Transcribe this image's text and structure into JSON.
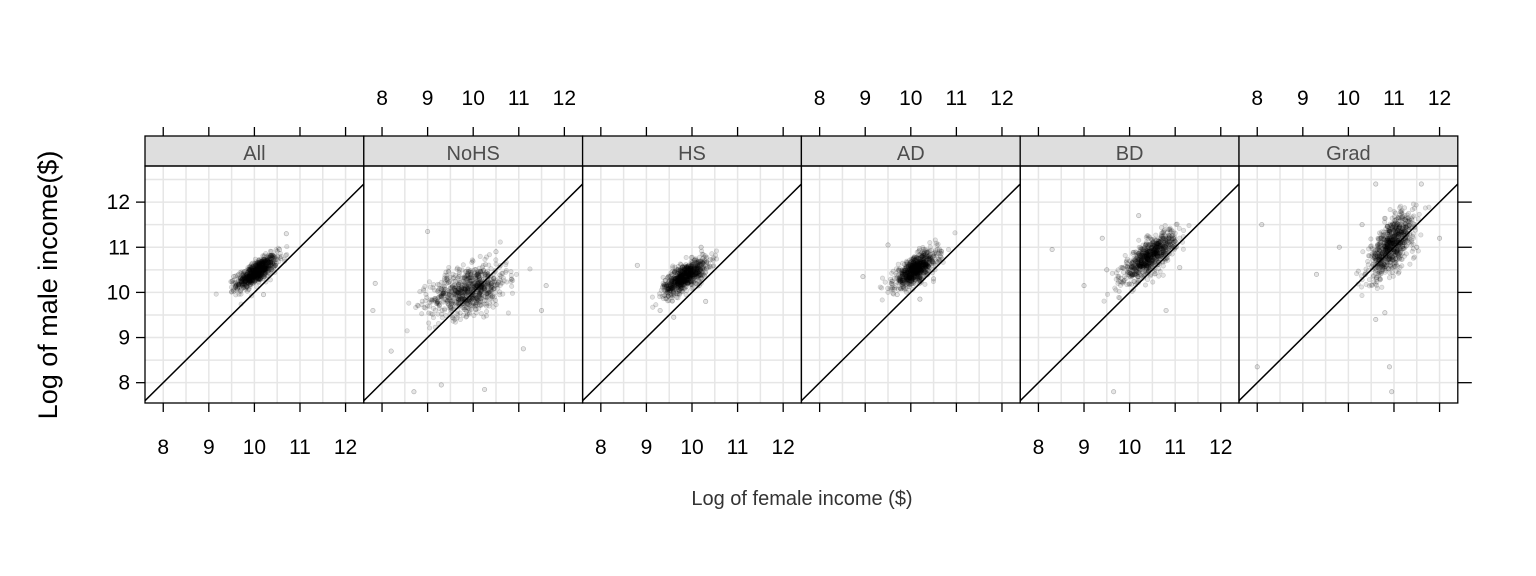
{
  "chart_data": {
    "type": "scatter",
    "layout": "faceted panels",
    "xlabel": "Log of female income ($)",
    "ylabel": "Log of male income($)",
    "xlim": [
      7.6,
      12.4
    ],
    "ylim": [
      7.55,
      12.8
    ],
    "x_ticks": [
      8,
      9,
      10,
      11,
      12
    ],
    "y_ticks": [
      8,
      9,
      10,
      11,
      12
    ],
    "reference_line": "y = x",
    "grid": true,
    "point_color": "#000000",
    "strip_color": "#dedede",
    "panels": [
      {
        "label": "All",
        "cluster": {
          "x_mean": 10.05,
          "y_mean": 10.45,
          "x_sd": 0.22,
          "y_sd": 0.18,
          "correlation": 0.75
        },
        "points": [
          [
            9.55,
            10.35
          ],
          [
            10.55,
            10.95
          ],
          [
            10.7,
            11.3
          ],
          [
            10.2,
            9.95
          ],
          [
            9.7,
            10.05
          ]
        ]
      },
      {
        "label": "NoHS",
        "cluster": {
          "x_mean": 9.9,
          "y_mean": 10.05,
          "x_sd": 0.42,
          "y_sd": 0.28,
          "correlation": 0.4
        },
        "points": [
          [
            7.85,
            10.2
          ],
          [
            7.8,
            9.6
          ],
          [
            8.2,
            8.7
          ],
          [
            8.7,
            7.8
          ],
          [
            9.3,
            7.95
          ],
          [
            10.25,
            7.85
          ],
          [
            11.1,
            8.75
          ],
          [
            11.5,
            9.6
          ],
          [
            11.6,
            10.15
          ],
          [
            10.5,
            10.9
          ],
          [
            9.0,
            11.35
          ]
        ]
      },
      {
        "label": "HS",
        "cluster": {
          "x_mean": 9.85,
          "y_mean": 10.35,
          "x_sd": 0.24,
          "y_sd": 0.2,
          "correlation": 0.7
        },
        "points": [
          [
            8.8,
            10.6
          ],
          [
            9.3,
            9.6
          ],
          [
            10.2,
            11.0
          ],
          [
            10.3,
            9.8
          ],
          [
            9.6,
            9.45
          ]
        ]
      },
      {
        "label": "AD",
        "cluster": {
          "x_mean": 10.1,
          "y_mean": 10.5,
          "x_sd": 0.24,
          "y_sd": 0.2,
          "correlation": 0.7
        },
        "points": [
          [
            8.95,
            10.35
          ],
          [
            9.5,
            11.05
          ],
          [
            10.5,
            10.3
          ],
          [
            10.2,
            9.85
          ],
          [
            9.7,
            9.95
          ]
        ]
      },
      {
        "label": "BD",
        "cluster": {
          "x_mean": 10.45,
          "y_mean": 10.8,
          "x_sd": 0.28,
          "y_sd": 0.27,
          "correlation": 0.75
        },
        "points": [
          [
            8.3,
            10.95
          ],
          [
            9.0,
            10.15
          ],
          [
            9.4,
            11.2
          ],
          [
            9.65,
            7.8
          ],
          [
            10.8,
            9.6
          ],
          [
            11.1,
            10.55
          ],
          [
            10.2,
            11.7
          ],
          [
            9.5,
            10.5
          ]
        ]
      },
      {
        "label": "Grad",
        "cluster": {
          "x_mean": 10.95,
          "y_mean": 11.05,
          "x_sd": 0.25,
          "y_sd": 0.35,
          "correlation": 0.65
        },
        "points": [
          [
            8.1,
            11.5
          ],
          [
            8.0,
            8.35
          ],
          [
            9.8,
            11.0
          ],
          [
            10.3,
            11.5
          ],
          [
            10.6,
            12.4
          ],
          [
            11.6,
            12.4
          ],
          [
            11.5,
            11.0
          ],
          [
            10.9,
            8.35
          ],
          [
            10.95,
            7.8
          ],
          [
            10.6,
            9.4
          ],
          [
            10.8,
            9.55
          ],
          [
            12.0,
            11.2
          ],
          [
            9.3,
            10.4
          ]
        ]
      }
    ],
    "top_axis_panels": [
      1,
      3,
      5
    ],
    "bottom_axis_panels": [
      0,
      2,
      4
    ]
  }
}
